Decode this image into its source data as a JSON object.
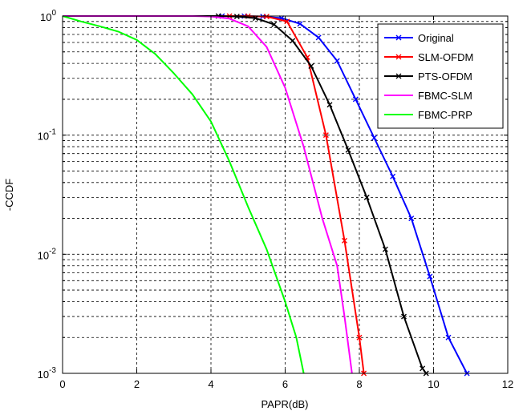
{
  "chart_data": {
    "type": "line",
    "title": "",
    "xlabel": "PAPR(dB)",
    "ylabel": "-CCDF",
    "xlim": [
      0,
      12
    ],
    "ylim": [
      0.001,
      1
    ],
    "yscale": "log",
    "x_ticks": [
      "0",
      "2",
      "4",
      "6",
      "8",
      "10",
      "12"
    ],
    "x_tick_values": [
      0,
      2,
      4,
      6,
      8,
      10,
      12
    ],
    "y_ticks": [
      {
        "value": 1,
        "base": "10",
        "exp": "0"
      },
      {
        "value": 0.1,
        "base": "10",
        "exp": "-1"
      },
      {
        "value": 0.01,
        "base": "10",
        "exp": "-2"
      },
      {
        "value": 0.001,
        "base": "10",
        "exp": "-3"
      }
    ],
    "grid": true,
    "legend_position": "top-right",
    "series": [
      {
        "name": "Original",
        "color": "#0000ff",
        "marker": "x",
        "x": [
          0,
          4.3,
          4.9,
          5.4,
          5.9,
          6.4,
          6.9,
          7.4,
          7.9,
          8.4,
          8.9,
          9.4,
          9.9,
          10.4,
          10.9
        ],
        "y": [
          1,
          1,
          0.999,
          0.99,
          0.96,
          0.86,
          0.66,
          0.42,
          0.2,
          0.095,
          0.045,
          0.02,
          0.0065,
          0.002,
          0.001
        ]
      },
      {
        "name": "SLM-OFDM",
        "color": "#ff0000",
        "marker": "x",
        "x": [
          0,
          4.5,
          5.0,
          5.5,
          6.05,
          6.6,
          7.1,
          7.6,
          8.0,
          8.12
        ],
        "y": [
          1,
          1,
          0.999,
          0.99,
          0.9,
          0.45,
          0.1,
          0.013,
          0.002,
          0.001
        ]
      },
      {
        "name": "PTS-OFDM",
        "color": "#000000",
        "marker": "x",
        "x": [
          0,
          4.2,
          4.7,
          5.2,
          5.7,
          6.2,
          6.7,
          7.2,
          7.7,
          8.2,
          8.7,
          9.2,
          9.7,
          9.8
        ],
        "y": [
          1,
          1,
          0.99,
          0.96,
          0.85,
          0.62,
          0.38,
          0.18,
          0.075,
          0.03,
          0.011,
          0.003,
          0.0011,
          0.001
        ]
      },
      {
        "name": "FBMC-SLM",
        "color": "#ff00ff",
        "marker": "none",
        "x": [
          0,
          3.5,
          4.0,
          4.5,
          5.0,
          5.5,
          6.0,
          6.5,
          7.0,
          7.4,
          7.6,
          7.8
        ],
        "y": [
          1,
          1,
          0.99,
          0.95,
          0.82,
          0.55,
          0.25,
          0.08,
          0.02,
          0.008,
          0.003,
          0.001
        ]
      },
      {
        "name": "FBMC-PRP",
        "color": "#00ff00",
        "marker": "none",
        "x": [
          0,
          0.5,
          1.0,
          1.5,
          2.0,
          2.5,
          3.0,
          3.5,
          4.0,
          4.5,
          5.0,
          5.5,
          6.0,
          6.3,
          6.5
        ],
        "y": [
          1,
          0.9,
          0.82,
          0.74,
          0.63,
          0.48,
          0.33,
          0.22,
          0.13,
          0.06,
          0.025,
          0.011,
          0.004,
          0.002,
          0.001
        ]
      }
    ]
  }
}
